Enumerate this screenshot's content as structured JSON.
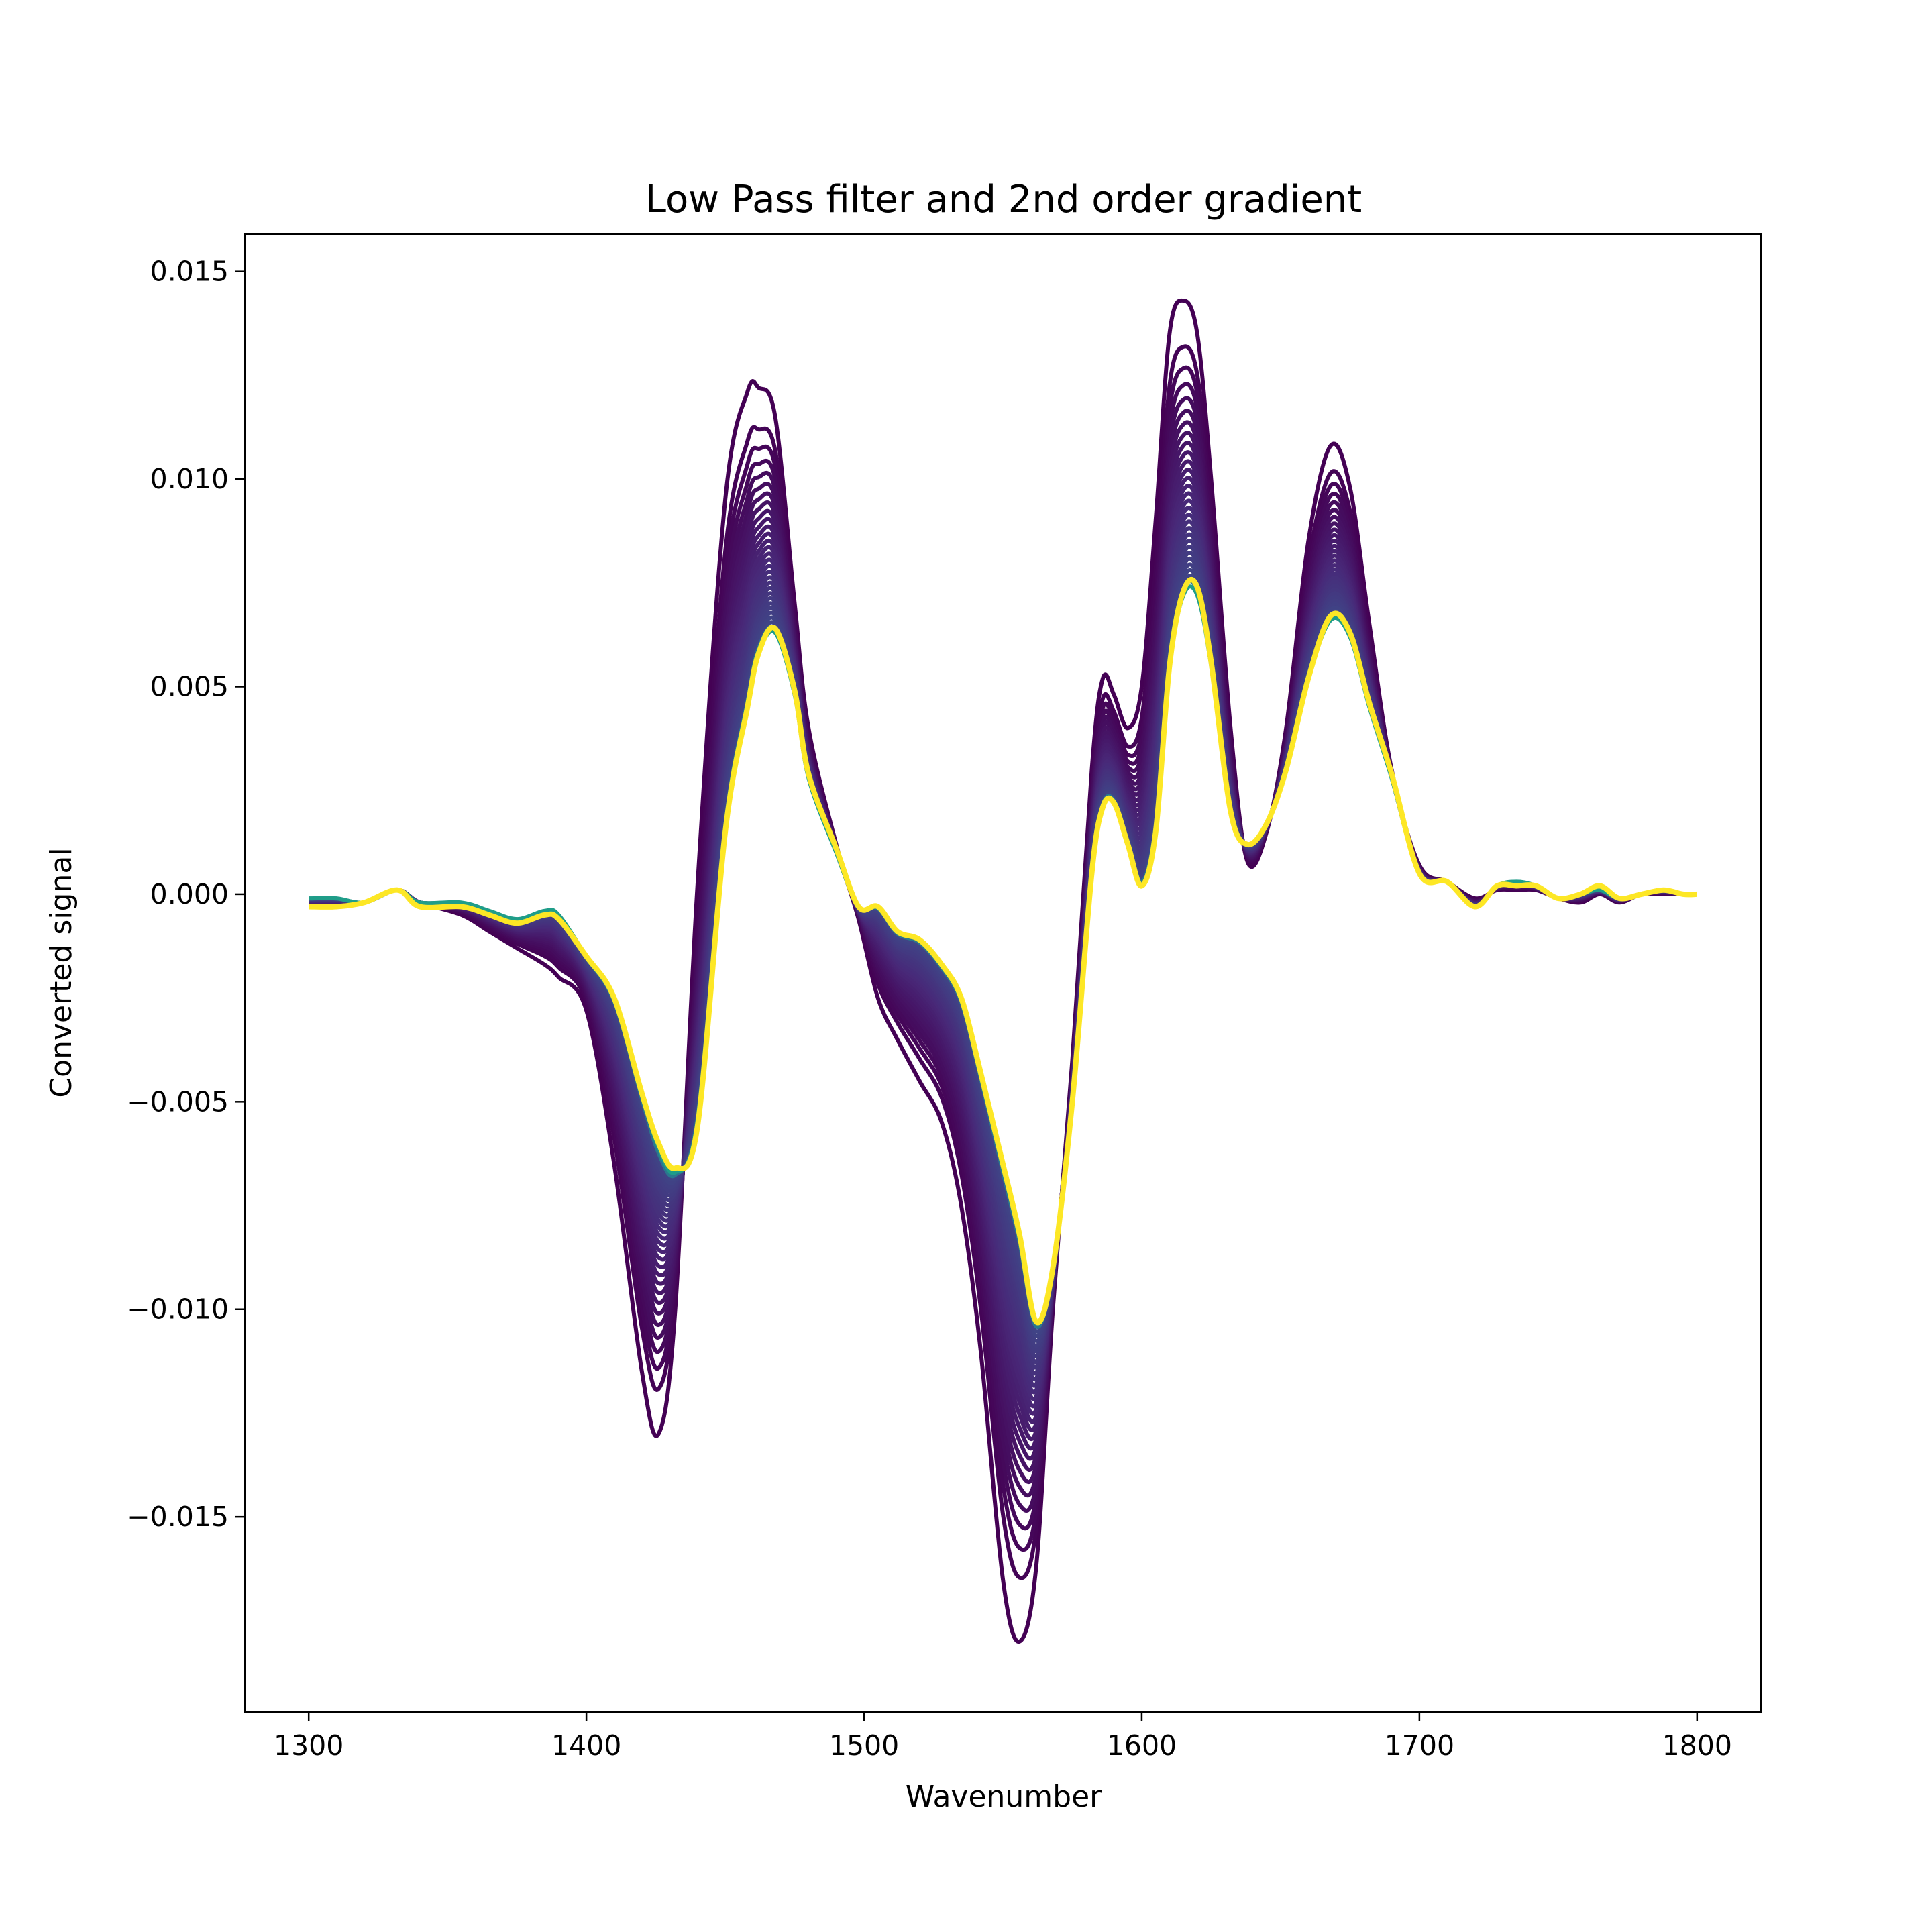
{
  "chart_data": {
    "type": "line",
    "title": "Low Pass filter and 2nd order gradient",
    "xlabel": "Wavenumber",
    "ylabel": "Converted signal",
    "xlim": [
      1277,
      1823
    ],
    "ylim": [
      -0.0197,
      0.0159
    ],
    "xticks": [
      1300,
      1400,
      1500,
      1600,
      1700,
      1800
    ],
    "yticks": [
      -0.015,
      -0.01,
      -0.005,
      0.0,
      0.005,
      0.01,
      0.015
    ],
    "xtick_labels": [
      "1300",
      "1400",
      "1500",
      "1600",
      "1700",
      "1800"
    ],
    "ytick_labels": [
      "−0.015",
      "−0.010",
      "−0.005",
      "0.000",
      "0.005",
      "0.010",
      "0.015"
    ],
    "grid": false,
    "legend": "none",
    "colormap": "viridis",
    "colormap_start": "#440154",
    "colormap_end": "#fde725",
    "series_count": 30,
    "x": [
      1300,
      1310,
      1320,
      1332,
      1340,
      1355,
      1365,
      1375,
      1385,
      1390,
      1400,
      1410,
      1420,
      1426,
      1432,
      1440,
      1450,
      1458,
      1462,
      1468,
      1475,
      1480,
      1490,
      1498,
      1505,
      1512,
      1520,
      1528,
      1535,
      1542,
      1550,
      1556,
      1562,
      1568,
      1575,
      1582,
      1586,
      1590,
      1595,
      1600,
      1605,
      1610,
      1615,
      1620,
      1625,
      1632,
      1638,
      1645,
      1652,
      1660,
      1668,
      1675,
      1682,
      1690,
      1700,
      1710,
      1720,
      1728,
      1735,
      1742,
      1750,
      1758,
      1765,
      1772,
      1780,
      1788,
      1795,
      1800
    ],
    "envelope_outer": [
      -0.0003,
      -0.0003,
      -0.0002,
      0.0001,
      -0.0002,
      -0.0005,
      -0.0009,
      -0.0013,
      -0.0017,
      -0.002,
      -0.0028,
      -0.0065,
      -0.0115,
      -0.013,
      -0.01,
      0.0002,
      0.0095,
      0.0121,
      0.0122,
      0.0115,
      0.007,
      0.004,
      0.0012,
      -0.0006,
      -0.0025,
      -0.0035,
      -0.0045,
      -0.0055,
      -0.0075,
      -0.011,
      -0.0165,
      -0.018,
      -0.0162,
      -0.01,
      -0.004,
      0.003,
      0.0052,
      0.0048,
      0.004,
      0.005,
      0.009,
      0.0135,
      0.0143,
      0.0135,
      0.01,
      0.004,
      0.0008,
      0.0015,
      0.004,
      0.0085,
      0.0108,
      0.0098,
      0.0065,
      0.003,
      0.0007,
      0.0003,
      -0.0001,
      0.0001,
      0.0001,
      0.0001,
      -0.0001,
      -0.0002,
      0.0,
      -0.0002,
      0.0,
      0.0,
      0.0,
      0.0
    ],
    "envelope_inner": [
      -0.0001,
      -0.0001,
      -0.0002,
      0.0001,
      -0.0002,
      -0.0002,
      -0.0004,
      -0.0006,
      -0.0004,
      -0.0005,
      -0.0015,
      -0.0025,
      -0.0048,
      -0.0061,
      -0.0067,
      -0.0055,
      0.0015,
      0.0045,
      0.0058,
      0.0063,
      0.0048,
      0.0028,
      0.001,
      -0.0003,
      -0.0003,
      -0.0009,
      -0.0011,
      -0.0017,
      -0.0025,
      -0.0043,
      -0.0065,
      -0.0082,
      -0.0103,
      -0.009,
      -0.005,
      0.0005,
      0.0021,
      0.0022,
      0.0012,
      0.0002,
      0.0015,
      0.0055,
      0.0072,
      0.0072,
      0.0055,
      0.002,
      0.0012,
      0.0017,
      0.003,
      0.0052,
      0.0066,
      0.0062,
      0.0045,
      0.0028,
      0.0005,
      0.0003,
      -0.0003,
      0.0002,
      0.0003,
      0.0002,
      -0.0001,
      0.0,
      0.0001,
      -0.0001,
      0.0,
      0.0001,
      0.0,
      0.0
    ],
    "highlight_series": {
      "color": "#fde725",
      "values": [
        -0.0003,
        -0.0003,
        -0.0002,
        0.0001,
        -0.0003,
        -0.0003,
        -0.0005,
        -0.0007,
        -0.0005,
        -0.0006,
        -0.0015,
        -0.0025,
        -0.0048,
        -0.006,
        -0.0066,
        -0.0056,
        0.0015,
        0.0045,
        0.0058,
        0.0064,
        0.0049,
        0.0029,
        0.0011,
        -0.0003,
        -0.0003,
        -0.0009,
        -0.0011,
        -0.0017,
        -0.0025,
        -0.0043,
        -0.0065,
        -0.0082,
        -0.0103,
        -0.009,
        -0.005,
        0.0005,
        0.0021,
        0.0022,
        0.0012,
        0.0002,
        0.0015,
        0.0055,
        0.0073,
        0.0074,
        0.0056,
        0.002,
        0.0012,
        0.0017,
        0.003,
        0.0052,
        0.0067,
        0.0063,
        0.0046,
        0.0029,
        0.0005,
        0.0003,
        -0.0003,
        0.0002,
        0.0002,
        0.0002,
        -0.0001,
        0.0,
        0.0002,
        -0.0001,
        0.0,
        0.0001,
        0.0,
        0.0
      ]
    }
  }
}
